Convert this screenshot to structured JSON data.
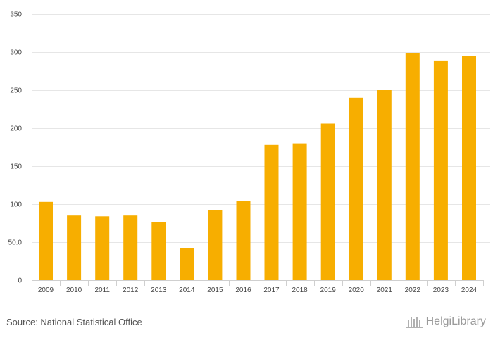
{
  "chart_data": {
    "type": "bar",
    "title": "",
    "xlabel": "",
    "ylabel": "",
    "categories": [
      "2009",
      "2010",
      "2011",
      "2012",
      "2013",
      "2014",
      "2015",
      "2016",
      "2017",
      "2018",
      "2019",
      "2020",
      "2021",
      "2022",
      "2023",
      "2024"
    ],
    "values": [
      103,
      85,
      84,
      85,
      76,
      42,
      92,
      104,
      178,
      180,
      206,
      240,
      250,
      299,
      289,
      295
    ],
    "ylim": [
      0,
      350
    ],
    "yticks": [
      0,
      50,
      100,
      150,
      200,
      250,
      300,
      350
    ],
    "ytick_labels": [
      "0",
      "50.0",
      "100",
      "150",
      "200",
      "250",
      "300",
      "350"
    ],
    "grid": true,
    "bar_color": "#f7ae00"
  },
  "footer": {
    "source": "Source: National Statistical Office",
    "logo_text": "HelgiLibrary"
  }
}
